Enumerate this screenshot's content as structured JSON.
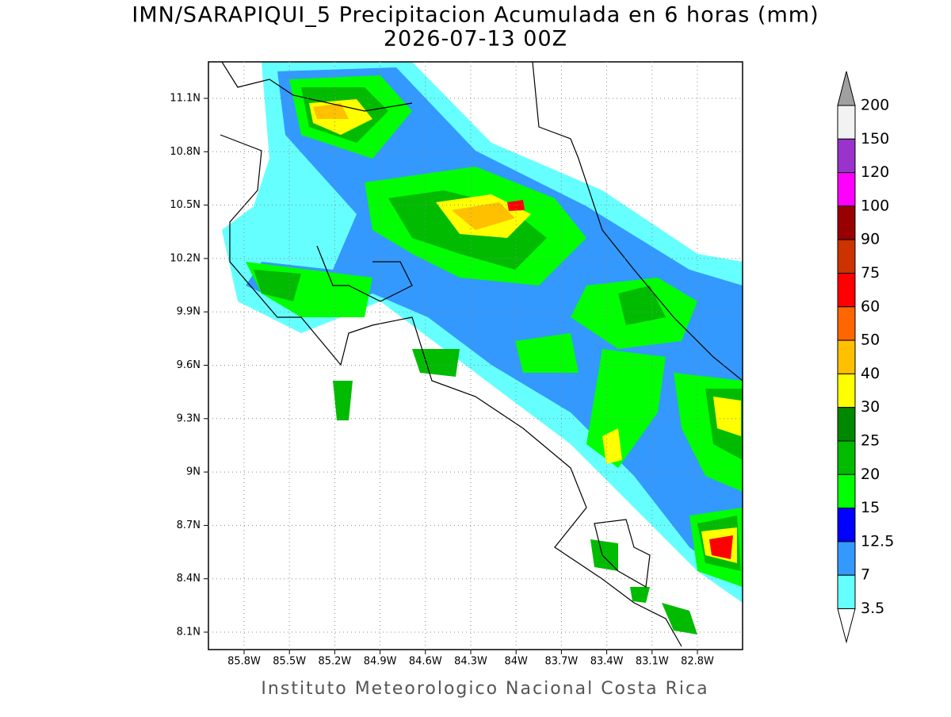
{
  "header": {
    "title": "IMN/SARAPIQUI_5 Precipitacion Acumulada en 6 horas (mm)",
    "subtitle": "2026-07-13 00Z"
  },
  "map": {
    "lon_labels": [
      "85.8W",
      "85.5W",
      "85.2W",
      "84.9W",
      "84.6W",
      "84.3W",
      "84W",
      "83.7W",
      "83.4W",
      "83.1W",
      "82.8W"
    ],
    "lat_labels": [
      "11.1N",
      "10.8N",
      "10.5N",
      "10.2N",
      "9.9N",
      "9.6N",
      "9.3N",
      "9N",
      "8.7N",
      "8.4N",
      "8.1N"
    ]
  },
  "colorbar": {
    "labels": [
      "200",
      "150",
      "120",
      "100",
      "90",
      "75",
      "60",
      "50",
      "40",
      "30",
      "25",
      "20",
      "15",
      "12.5",
      "7",
      "3.5"
    ],
    "colors": [
      "#f2f2f2",
      "#9933cc",
      "#ff00ff",
      "#990000",
      "#cc3300",
      "#ff0000",
      "#ff6600",
      "#ffc000",
      "#ffff00",
      "#008800",
      "#00bb00",
      "#00ff00",
      "#0000ff",
      "#3399ff",
      "#66ffff"
    ],
    "over_color": "#a0a0a0",
    "under_color": "#ffffff"
  },
  "footer": "Instituto Meteorologico Nacional Costa Rica"
}
